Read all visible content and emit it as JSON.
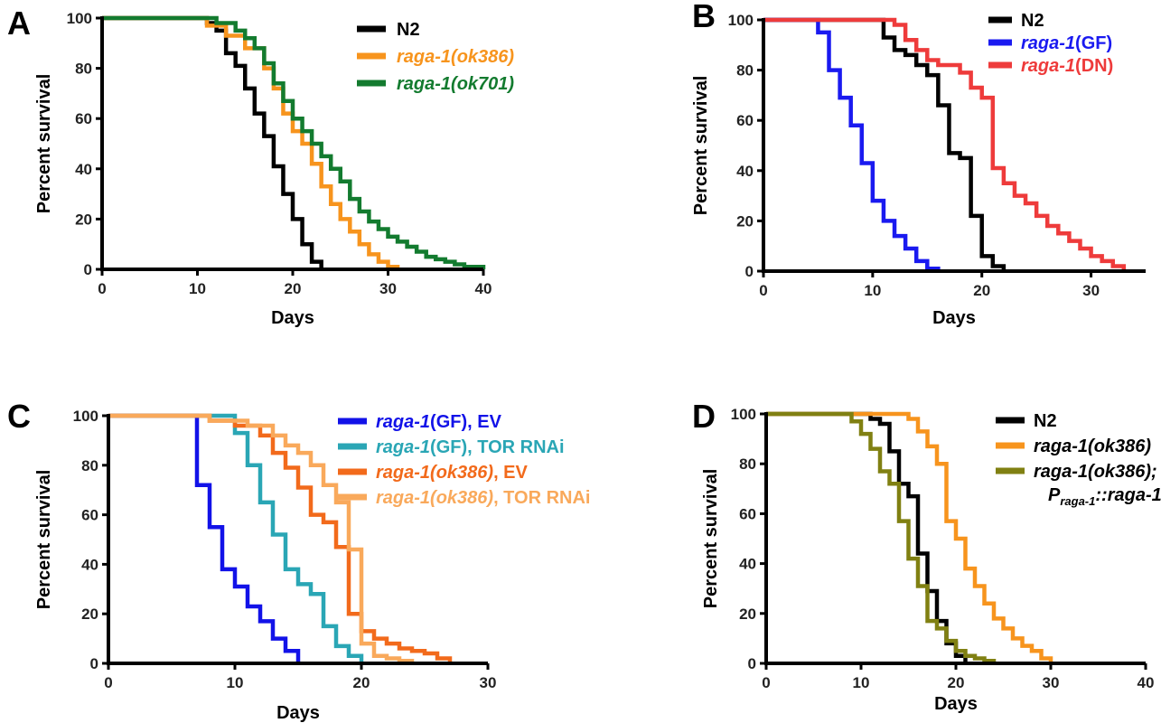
{
  "chart_data": [
    {
      "type": "line",
      "panel": "A",
      "xlabel": "Days",
      "ylabel": "Percent survival",
      "xlim": [
        0,
        40
      ],
      "ylim": [
        0,
        100
      ],
      "xticks": [
        0,
        10,
        20,
        30,
        40
      ],
      "yticks": [
        0,
        20,
        40,
        60,
        80,
        100
      ],
      "legend_position": "top-right",
      "series": [
        {
          "name": "N2",
          "color": "#000000",
          "italic": false,
          "x": [
            0,
            10,
            11,
            12,
            13,
            14,
            15,
            16,
            17,
            18,
            19,
            20,
            21,
            22,
            23
          ],
          "y": [
            100,
            100,
            98,
            95,
            86,
            81,
            72,
            62,
            53,
            41,
            30,
            20,
            10,
            3,
            0
          ]
        },
        {
          "name": "raga-1(ok386)",
          "color": "#F7941D",
          "italic": true,
          "x": [
            0,
            9,
            11,
            13,
            15,
            17,
            18,
            19,
            20,
            21,
            22,
            23,
            24,
            25,
            26,
            27,
            28,
            29,
            30,
            31
          ],
          "y": [
            100,
            100,
            97,
            93,
            88,
            80,
            72,
            62,
            55,
            50,
            42,
            33,
            26,
            20,
            15,
            10,
            6,
            3,
            1,
            0
          ]
        },
        {
          "name": "raga-1(ok701)",
          "color": "#137B2F",
          "italic": true,
          "x": [
            0,
            10,
            12,
            14,
            15,
            16,
            17,
            18,
            19,
            20,
            21,
            22,
            23,
            24,
            25,
            26,
            27,
            28,
            29,
            30,
            31,
            32,
            33,
            34,
            35,
            36,
            37,
            38,
            40
          ],
          "y": [
            100,
            100,
            98,
            95,
            92,
            88,
            82,
            74,
            67,
            60,
            55,
            50,
            45,
            40,
            35,
            28,
            23,
            19,
            16,
            13,
            11,
            9,
            7,
            5,
            4,
            3,
            2,
            1,
            0
          ]
        }
      ]
    },
    {
      "type": "line",
      "panel": "B",
      "xlabel": "Days",
      "ylabel": "Percent survival",
      "xlim": [
        0,
        35
      ],
      "ylim": [
        0,
        100
      ],
      "xticks": [
        0,
        10,
        20,
        30
      ],
      "yticks": [
        0,
        20,
        40,
        60,
        80,
        100
      ],
      "legend_position": "top-right",
      "series": [
        {
          "name": "N2",
          "color": "#000000",
          "name_parts": [
            {
              "t": "N2",
              "i": false
            }
          ],
          "x": [
            0,
            10,
            11,
            12,
            13,
            14,
            15,
            16,
            17,
            18,
            19,
            20,
            21,
            22
          ],
          "y": [
            100,
            100,
            93,
            88,
            86,
            82,
            78,
            66,
            47,
            45,
            22,
            6,
            2,
            0
          ]
        },
        {
          "name": "raga-1(GF)",
          "color": "#1A1AF0",
          "name_parts": [
            {
              "t": "raga-1",
              "i": true
            },
            {
              "t": "(GF)",
              "i": false
            }
          ],
          "x": [
            0,
            5,
            6,
            7,
            8,
            9,
            10,
            11,
            12,
            13,
            14,
            15,
            16
          ],
          "y": [
            100,
            95,
            80,
            69,
            58,
            43,
            28,
            20,
            14,
            9,
            4,
            1,
            0
          ]
        },
        {
          "name": "raga-1(DN)",
          "color": "#EE3B3B",
          "name_parts": [
            {
              "t": "raga-1",
              "i": true
            },
            {
              "t": "(DN)",
              "i": false
            }
          ],
          "x": [
            0,
            11,
            12,
            13,
            14,
            15,
            16,
            18,
            19,
            20,
            21,
            22,
            23,
            24,
            25,
            26,
            27,
            28,
            29,
            30,
            31,
            32,
            33
          ],
          "y": [
            100,
            100,
            98,
            92,
            88,
            84,
            82,
            79,
            73,
            69,
            41,
            35,
            30,
            27,
            22,
            18,
            15,
            12,
            9,
            6,
            4,
            2,
            0
          ]
        }
      ]
    },
    {
      "type": "line",
      "panel": "C",
      "xlabel": "Days",
      "ylabel": "Percent survival",
      "xlim": [
        0,
        30
      ],
      "ylim": [
        0,
        100
      ],
      "xticks": [
        0,
        10,
        20,
        30
      ],
      "yticks": [
        0,
        20,
        40,
        60,
        80,
        100
      ],
      "legend_position": "top-right",
      "series": [
        {
          "name": "raga-1(GF), EV",
          "color": "#1212E8",
          "name_parts": [
            {
              "t": "raga-1",
              "i": true
            },
            {
              "t": "(GF), EV",
              "i": false
            }
          ],
          "x": [
            0,
            7,
            8,
            9,
            10,
            11,
            12,
            13,
            14,
            15
          ],
          "y": [
            100,
            72,
            55,
            38,
            31,
            23,
            17,
            10,
            5,
            0
          ]
        },
        {
          "name": "raga-1(GF), TOR RNAi",
          "color": "#2AA6B5",
          "name_parts": [
            {
              "t": "raga-1",
              "i": true
            },
            {
              "t": "(GF), TOR RNAi",
              "i": false
            }
          ],
          "x": [
            0,
            9,
            10,
            11,
            12,
            13,
            14,
            15,
            16,
            17,
            18,
            19,
            20
          ],
          "y": [
            100,
            100,
            93,
            80,
            65,
            52,
            38,
            32,
            28,
            15,
            7,
            3,
            0
          ]
        },
        {
          "name": "raga-1(ok386), EV",
          "color": "#F26A1B",
          "name_parts": [
            {
              "t": "raga-1(ok386)",
              "i": true
            },
            {
              "t": ", EV",
              "i": false
            }
          ],
          "x": [
            0,
            8,
            10,
            12,
            13,
            14,
            15,
            16,
            17,
            18,
            19,
            20,
            21,
            22,
            23,
            24,
            25,
            26,
            27
          ],
          "y": [
            100,
            98,
            96,
            92,
            85,
            79,
            71,
            60,
            57,
            47,
            20,
            13,
            10,
            8,
            6,
            5,
            4,
            2,
            0
          ]
        },
        {
          "name": "raga-1(ok386), TOR RNAi",
          "color": "#F9A95B",
          "name_parts": [
            {
              "t": "raga-1(ok386)",
              "i": true
            },
            {
              "t": ", TOR RNAi",
              "i": false
            }
          ],
          "x": [
            0,
            8,
            11,
            13,
            14,
            15,
            16,
            17,
            18,
            19,
            20,
            21,
            22,
            23,
            24
          ],
          "y": [
            100,
            98,
            96,
            92,
            88,
            85,
            80,
            72,
            65,
            46,
            8,
            3,
            2,
            1,
            0
          ]
        }
      ]
    },
    {
      "type": "line",
      "panel": "D",
      "xlabel": "Days",
      "ylabel": "Percent survival",
      "xlim": [
        0,
        40
      ],
      "ylim": [
        0,
        100
      ],
      "xticks": [
        0,
        10,
        20,
        30,
        40
      ],
      "yticks": [
        0,
        20,
        40,
        60,
        80,
        100
      ],
      "legend_position": "top-right",
      "series": [
        {
          "name": "N2",
          "color": "#000000",
          "x": [
            0,
            10,
            11,
            12,
            13,
            14,
            15,
            16,
            17,
            18,
            19,
            20,
            21
          ],
          "y": [
            100,
            100,
            98,
            96,
            85,
            72,
            67,
            44,
            29,
            17,
            8,
            3,
            0
          ]
        },
        {
          "name": "raga-1(ok386)",
          "color": "#F7941D",
          "x": [
            0,
            14,
            15,
            16,
            17,
            18,
            19,
            20,
            21,
            22,
            23,
            24,
            25,
            26,
            27,
            28,
            29,
            30
          ],
          "y": [
            100,
            100,
            98,
            93,
            87,
            80,
            57,
            50,
            38,
            31,
            24,
            18,
            14,
            10,
            7,
            5,
            2,
            0
          ]
        },
        {
          "name": "raga-1(ok386); Praga-1::raga-1",
          "color": "#808012",
          "x": [
            0,
            9,
            10,
            11,
            12,
            13,
            14,
            15,
            16,
            17,
            18,
            19,
            20,
            21,
            22,
            23,
            24
          ],
          "y": [
            100,
            97,
            92,
            86,
            77,
            72,
            57,
            42,
            31,
            17,
            14,
            9,
            5,
            3,
            2,
            1,
            0
          ]
        }
      ]
    }
  ],
  "panel_d_legend": {
    "line1": "raga-1(ok386);",
    "line2_prefix": "P",
    "line2_sub": "raga-1",
    "line2_suffix": "::raga-1"
  }
}
